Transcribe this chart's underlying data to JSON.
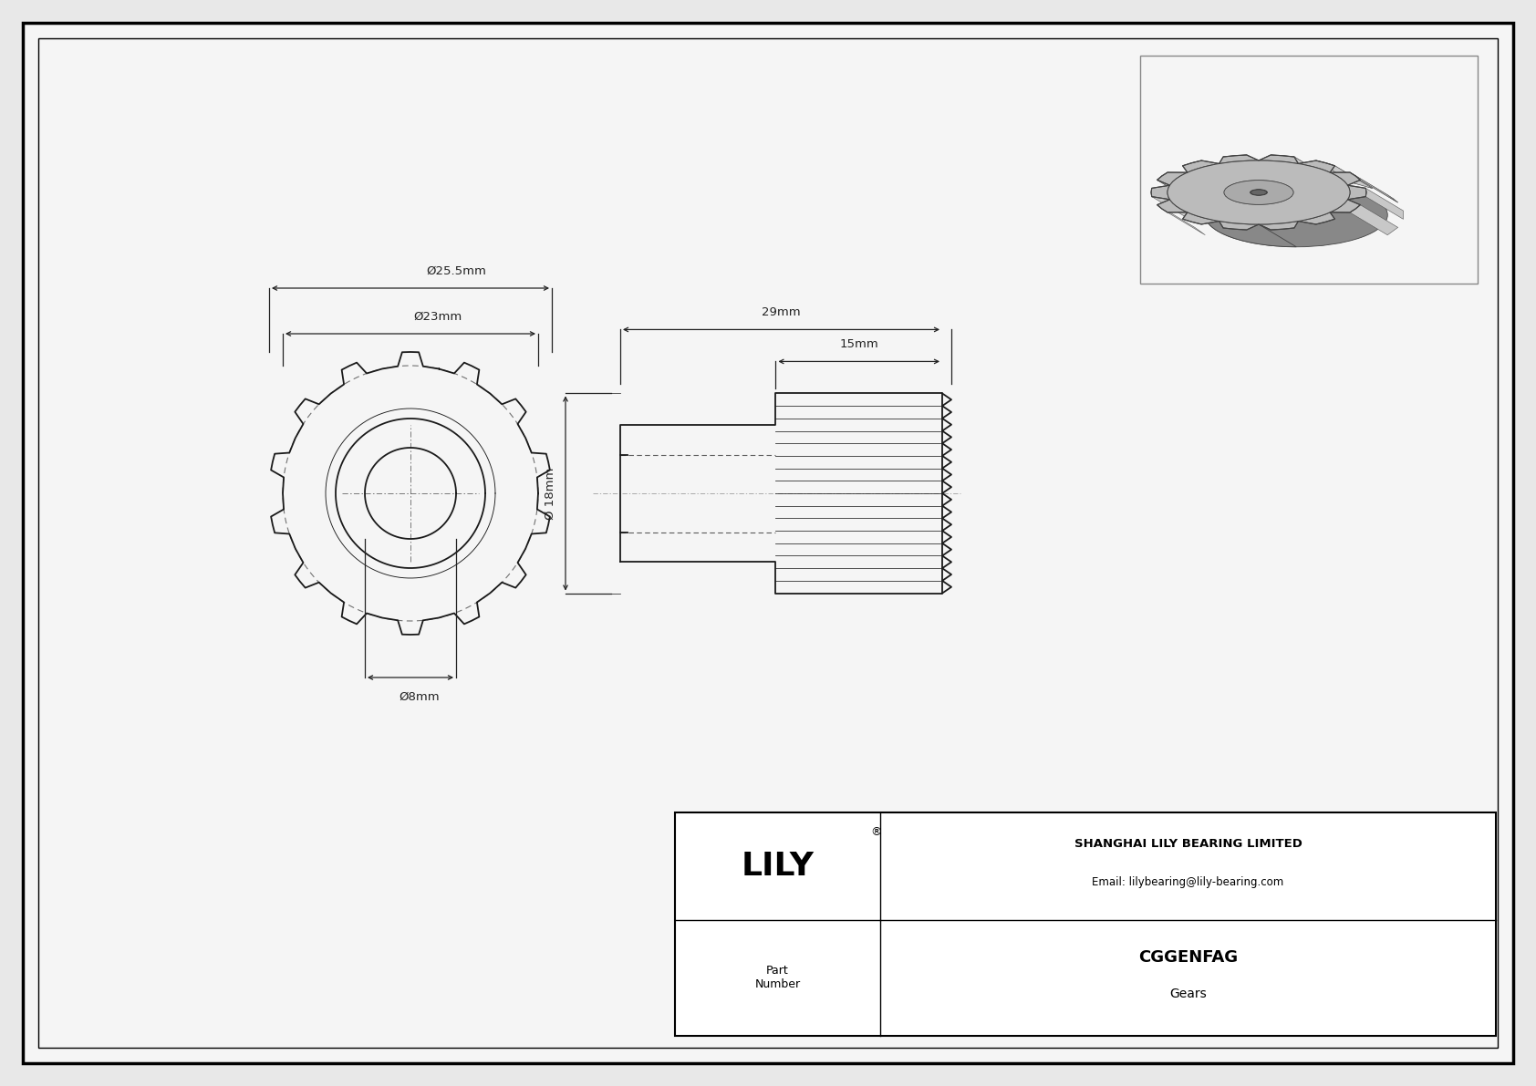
{
  "bg_color": "#e8e8e8",
  "drawing_bg": "#f5f5f5",
  "border_color": "#000000",
  "line_color": "#1a1a1a",
  "dim_color": "#222222",
  "title": "CGGENFAG",
  "subtitle": "Gears",
  "company": "SHANGHAI LILY BEARING LIMITED",
  "email": "Email: lilybearing@lily-bearing.com",
  "part_label": "Part\nNumber",
  "logo_text": "LILY",
  "dim_25_5": "Ø25.5mm",
  "dim_23": "Ø23mm",
  "dim_8": "Ø8mm",
  "dim_18": "Ø 18mm",
  "dim_29": "29mm",
  "dim_15": "15mm",
  "gear_teeth": 14,
  "gear3d_color_dark": "#888888",
  "gear3d_color_mid": "#aaaaaa",
  "gear3d_color_light": "#c8c8c8",
  "gear3d_color_body": "#bbbbbb"
}
